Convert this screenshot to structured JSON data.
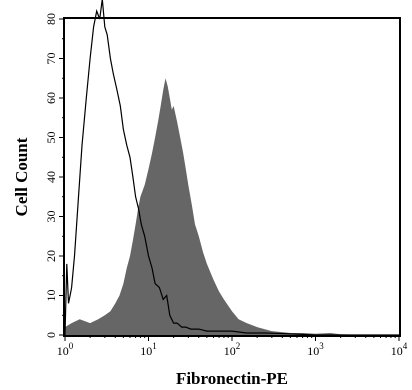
{
  "chart_data": {
    "type": "area",
    "xlabel": "Fibronectin-PE",
    "ylabel": "Cell Count",
    "x_scale": "log",
    "xlim": [
      1,
      10000
    ],
    "ylim": [
      0,
      80
    ],
    "grid": false,
    "y_ticks": [
      "0",
      "10",
      "20",
      "30",
      "40",
      "50",
      "60",
      "70",
      "80"
    ],
    "x_ticks": [
      {
        "value": 1,
        "base": "10",
        "exp": "0"
      },
      {
        "value": 10,
        "base": "10",
        "exp": "1"
      },
      {
        "value": 100,
        "base": "10",
        "exp": "2"
      },
      {
        "value": 1000,
        "base": "10",
        "exp": "3"
      },
      {
        "value": 10000,
        "base": "10",
        "exp": "4"
      }
    ],
    "series": [
      {
        "style": "open-outline",
        "color": "#000000",
        "x": [
          1.0,
          1.05,
          1.1,
          1.15,
          1.2,
          1.3,
          1.45,
          1.6,
          1.8,
          2.0,
          2.2,
          2.4,
          2.6,
          2.8,
          3.0,
          3.2,
          3.5,
          3.8,
          4.2,
          4.6,
          5.0,
          5.5,
          6.0,
          6.5,
          7.0,
          7.6,
          8.2,
          9.0,
          10.0,
          11.0,
          12.0,
          13.5,
          15.0,
          16.5,
          18.0,
          20.0,
          22.0,
          25.0,
          28.0,
          32.0,
          40.0,
          50.0,
          70.0,
          100.0,
          150.0,
          250.0,
          500.0,
          1000.0,
          2000.0,
          5000.0,
          10000.0
        ],
        "y": [
          0,
          18,
          8,
          10,
          12,
          20,
          35,
          48,
          60,
          70,
          78,
          82,
          80,
          85,
          78,
          76,
          70,
          66,
          62,
          58,
          52,
          48,
          45,
          40,
          35,
          32,
          28,
          25,
          20,
          17,
          13,
          12,
          9,
          10,
          5,
          3,
          3,
          2,
          2,
          1.5,
          1.5,
          1,
          1,
          1,
          0.5,
          0.5,
          0.3,
          0,
          0,
          0,
          0
        ]
      },
      {
        "style": "filled",
        "color": "#666666",
        "x": [
          1.0,
          1.2,
          1.5,
          2.0,
          2.5,
          3.0,
          3.5,
          4.0,
          4.5,
          5.0,
          5.5,
          6.0,
          6.5,
          7.0,
          7.5,
          8.0,
          9.0,
          10.0,
          11.0,
          12.0,
          13.0,
          14.0,
          15.0,
          16.0,
          17.0,
          18.0,
          19.0,
          20.0,
          22.0,
          24.0,
          26.0,
          28.0,
          30.0,
          33.0,
          36.0,
          40.0,
          45.0,
          50.0,
          60.0,
          70.0,
          80.0,
          100.0,
          120.0,
          150.0,
          200.0,
          300.0,
          500.0,
          700.0,
          1000.0,
          1500.0,
          2000.0,
          3000.0,
          5000.0,
          10000.0
        ],
        "y": [
          2,
          3,
          4,
          3,
          4,
          5,
          6,
          8,
          10,
          13,
          17,
          20,
          24,
          28,
          32,
          35,
          38,
          42,
          46,
          50,
          54,
          58,
          62,
          65,
          63,
          60,
          57,
          58,
          54,
          50,
          46,
          42,
          38,
          33,
          28,
          25,
          21,
          18,
          14,
          11,
          9,
          6,
          4,
          3,
          2,
          1,
          0.5,
          0.5,
          0.3,
          0.5,
          0.2,
          0.1,
          0,
          0
        ]
      }
    ]
  }
}
